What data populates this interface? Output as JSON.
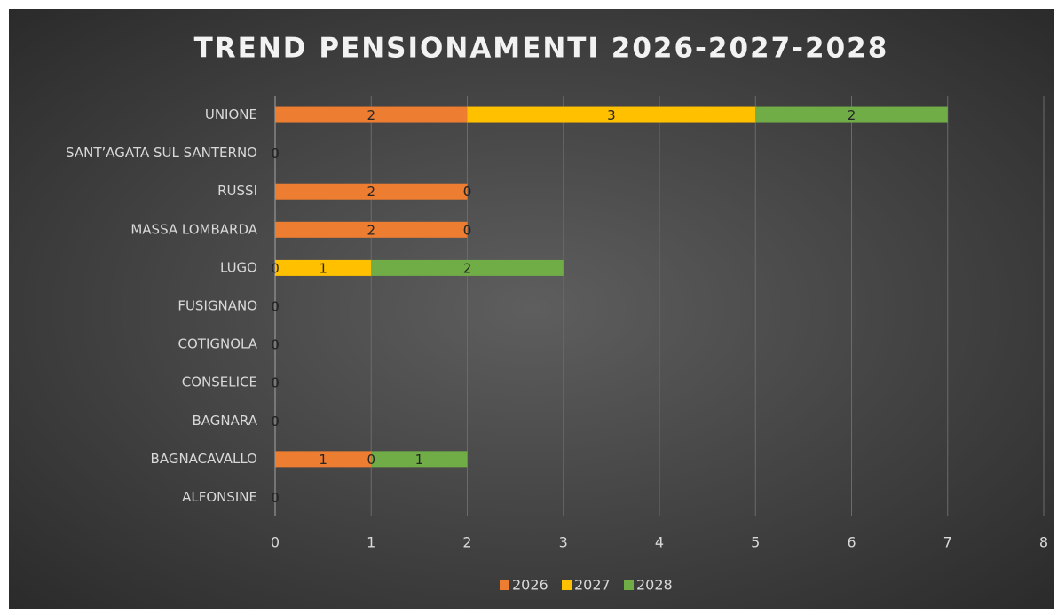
{
  "chart_data": {
    "type": "stacked-barh",
    "title": "TREND PENSIONAMENTI 2026-2027-2028",
    "categories": [
      "ALFONSINE",
      "BAGNACAVALLO",
      "BAGNARA",
      "CONSELICE",
      "COTIGNOLA",
      "FUSIGNANO",
      "LUGO",
      "MASSA LOMBARDA",
      "RUSSI",
      "SANT’AGATA SUL SANTERNO",
      "UNIONE"
    ],
    "series": [
      {
        "name": "2026",
        "color": "#ed7d31",
        "values": [
          0,
          1,
          0,
          0,
          0,
          0,
          0,
          2,
          2,
          0,
          2
        ]
      },
      {
        "name": "2027",
        "color": "#ffc000",
        "values": [
          0,
          0,
          0,
          0,
          0,
          0,
          1,
          0,
          0,
          0,
          3
        ]
      },
      {
        "name": "2028",
        "color": "#70ad47",
        "values": [
          0,
          1,
          0,
          0,
          0,
          0,
          2,
          0,
          0,
          0,
          2
        ]
      }
    ],
    "xlim": [
      0,
      8
    ],
    "xticks": [
      0,
      1,
      2,
      3,
      4,
      5,
      6,
      7,
      8
    ],
    "grid": true,
    "legend": "bottom"
  }
}
